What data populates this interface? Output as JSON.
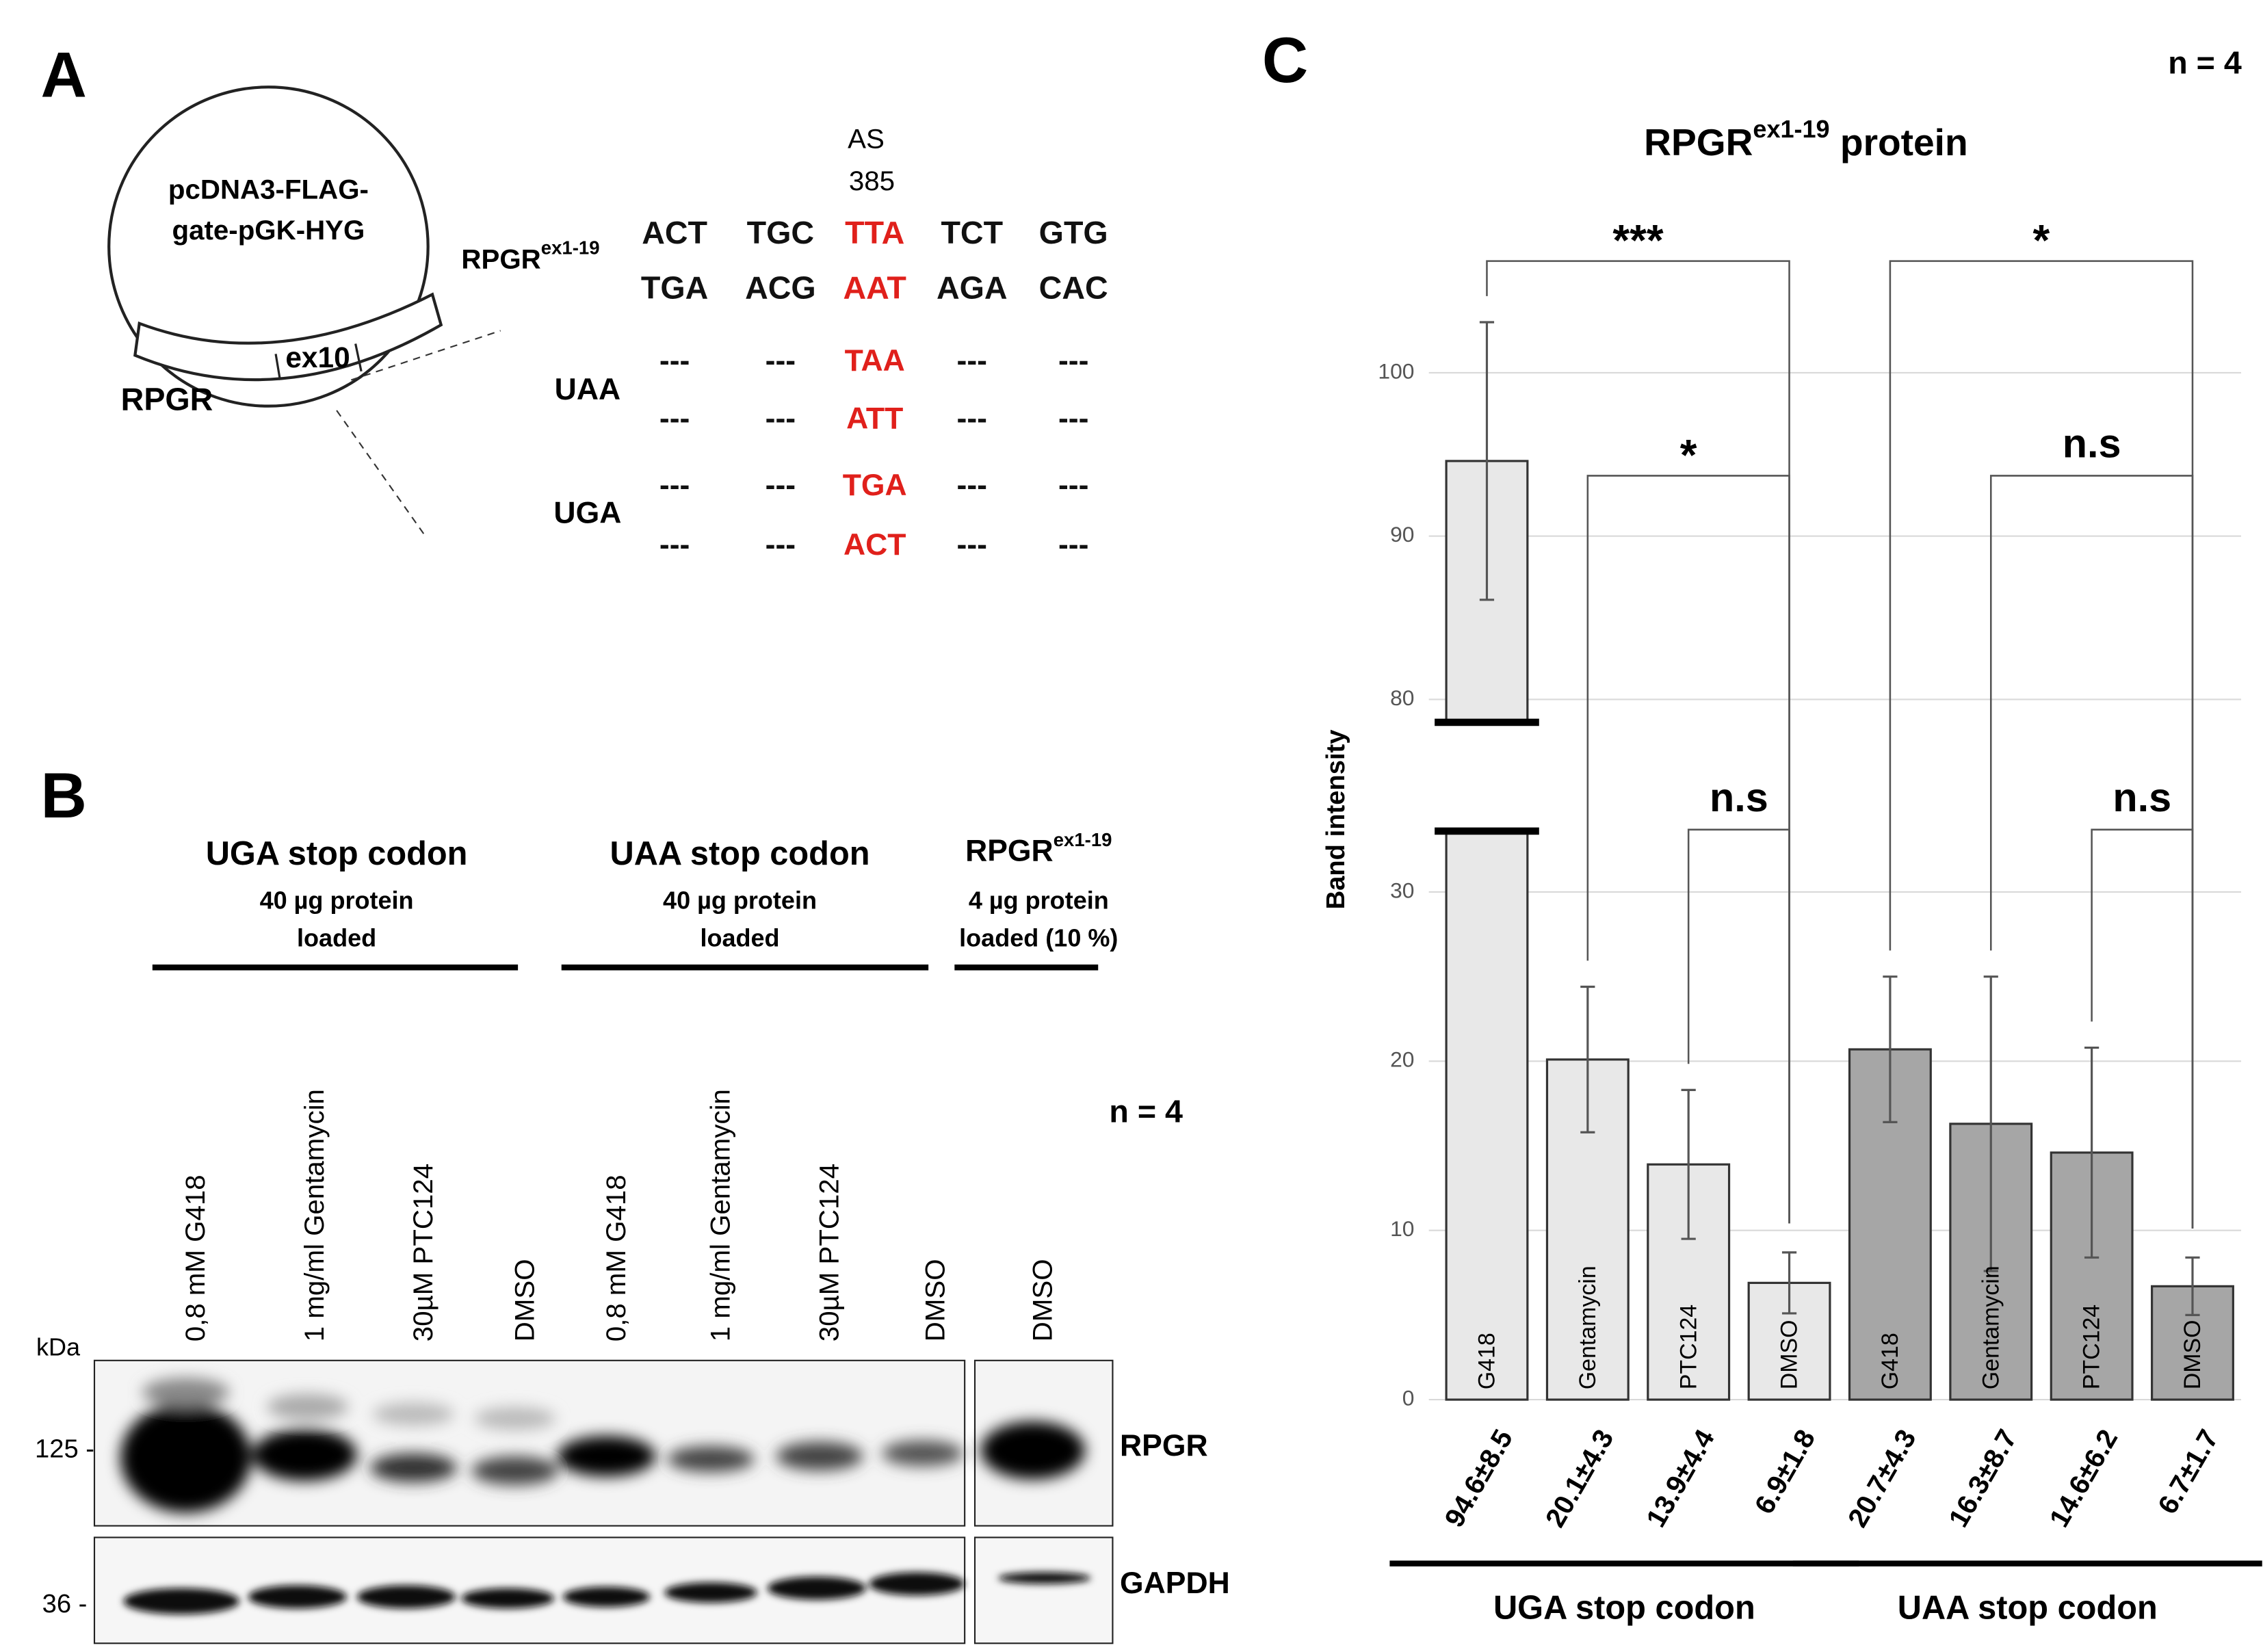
{
  "panel_a": {
    "label": "A",
    "plasmid": [
      "pcDNA3-FLAG-",
      "gate-pGK-HYG"
    ],
    "exon": "ex10",
    "gene": "RPGR",
    "construct": {
      "name": "RPGR",
      "sup": "ex1-19"
    },
    "site": [
      "AS",
      "385"
    ],
    "wild_type": [
      [
        "ACT",
        "TGC",
        "TTA",
        "TCT",
        "GTG"
      ],
      [
        "TGA",
        "ACG",
        "AAT",
        "AGA",
        "CAC"
      ]
    ],
    "mutants": [
      {
        "name": "UAA",
        "rows": [
          [
            "---",
            "---",
            "TAA",
            "---",
            "---"
          ],
          [
            "---",
            "---",
            "ATT",
            "---",
            "---"
          ]
        ]
      },
      {
        "name": "UGA",
        "rows": [
          [
            "---",
            "---",
            "TGA",
            "---",
            "---"
          ],
          [
            "---",
            "---",
            "ACT",
            "---",
            "---"
          ]
        ]
      }
    ]
  },
  "panel_b": {
    "label": "B",
    "groups": [
      {
        "title": "UGA stop codon",
        "note": [
          "40 µg protein",
          "loaded"
        ]
      },
      {
        "title": "UAA stop codon",
        "note": [
          "40 µg protein",
          "loaded"
        ]
      },
      {
        "title": "RPGR",
        "title_sup": "ex1-19",
        "note": [
          "4 µg protein",
          "loaded (10 %)"
        ]
      }
    ],
    "lanes": [
      "0,8 mM G418",
      "1 mg/ml Gentamycin",
      "30µM PTC124",
      "DMSO",
      "0,8 mM G418",
      "1 mg/ml Gentamycin",
      "30µM PTC124",
      "DMSO",
      "DMSO"
    ],
    "n": "n = 4",
    "unit": "kDa",
    "markers": [
      "125 -",
      "36 -"
    ],
    "blots": [
      "RPGR",
      "GAPDH"
    ]
  },
  "chart_data": {
    "type": "bar",
    "label": "C",
    "n": "n = 4",
    "title": "RPGR",
    "title_sup": "ex1-19",
    "title_rest": " protein",
    "y_label": "Band intensity",
    "categories": [
      "G418",
      "Gentamycin",
      "PTC124",
      "DMSO"
    ],
    "series": [
      {
        "name": "UGA stop codon",
        "color": "#e8e8e8",
        "values": [
          94.6,
          20.1,
          13.9,
          6.9
        ],
        "errors": [
          8.5,
          4.3,
          4.4,
          1.8
        ],
        "value_labels": [
          "94.6±8.5",
          "20.1±4.3",
          "13.9±4.4",
          "6.9±1.8"
        ],
        "significance": [
          "***",
          "*",
          "n.s"
        ]
      },
      {
        "name": "UAA stop codon",
        "color": "#a6a6a6",
        "values": [
          20.7,
          16.3,
          14.6,
          6.7
        ],
        "errors": [
          4.3,
          8.7,
          6.2,
          1.7
        ],
        "value_labels": [
          "20.7±4.3",
          "16.3±8.7",
          "14.6±6.2",
          "6.7±1.7"
        ],
        "significance": [
          "*",
          "n.s",
          "n.s"
        ]
      }
    ],
    "ylim": [
      0,
      104
    ],
    "ybreak": [
      33.6,
      78.6
    ],
    "yticks": [
      0,
      10,
      20,
      30,
      80,
      90,
      100
    ],
    "grid": true
  }
}
